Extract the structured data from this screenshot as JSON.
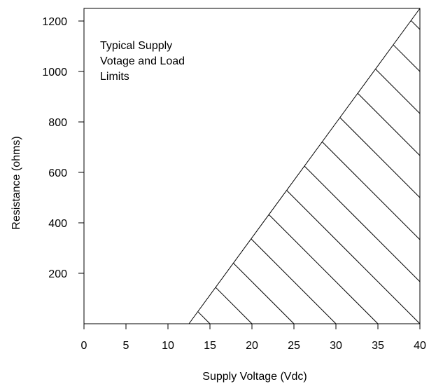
{
  "chart_data": {
    "type": "area",
    "title": "",
    "xlabel": "Supply Voltage (Vdc)",
    "ylabel": "Resistance (ohms)",
    "xlim": [
      0,
      40
    ],
    "ylim": [
      0,
      1250
    ],
    "x_ticks": [
      0,
      5,
      10,
      15,
      20,
      25,
      30,
      35,
      40
    ],
    "y_ticks": [
      200,
      400,
      600,
      800,
      1000,
      1200
    ],
    "grid": false,
    "annotation": [
      "Typical Supply",
      "Votage and Load",
      "Limits"
    ],
    "series": [
      {
        "x": [
          12.5,
          40
        ],
        "y": [
          0,
          1250
        ]
      }
    ],
    "fill": "hatched region below the line, bounded by x = 40",
    "hatch_count": 13
  },
  "colors": {
    "line": "#000000",
    "background": "#ffffff"
  }
}
